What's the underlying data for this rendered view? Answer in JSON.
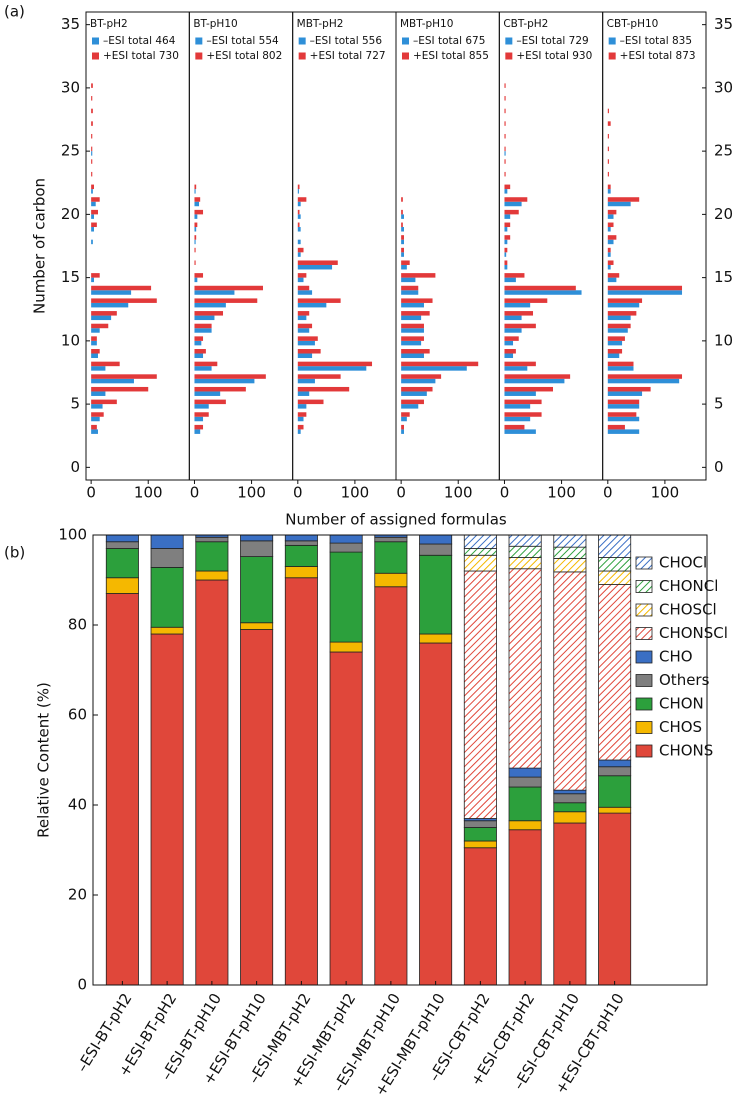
{
  "chart_data": [
    {
      "type": "hbar-panels",
      "label": "(a)",
      "ylabel": "Number of carbon",
      "xlabel": "Number of assigned formulas",
      "ylim": [
        -1,
        36
      ],
      "yticks": [
        0,
        5,
        10,
        15,
        20,
        25,
        30,
        35
      ],
      "xlim": [
        -9,
        172
      ],
      "xticks": [
        0,
        100
      ],
      "categories": [
        2,
        3,
        4,
        5,
        6,
        7,
        8,
        9,
        10,
        11,
        12,
        13,
        14,
        15,
        16,
        17,
        18,
        19,
        20,
        21,
        22,
        23,
        24,
        25,
        26,
        27,
        28,
        29,
        30
      ],
      "panels": [
        {
          "title": "BT-pH2",
          "series": [
            {
              "name": "–ESI total 464",
              "color": "#2e8fd8",
              "values": [
                0,
                12,
                15,
                20,
                25,
                75,
                25,
                12,
                10,
                15,
                35,
                65,
                70,
                5,
                0,
                0,
                3,
                5,
                5,
                8,
                3,
                0,
                0,
                2,
                0,
                0,
                0,
                0,
                0
              ]
            },
            {
              "name": "+ESI total 730",
              "color": "#e2393a",
              "values": [
                0,
                10,
                22,
                45,
                100,
                115,
                50,
                15,
                10,
                30,
                45,
                115,
                105,
                15,
                0,
                0,
                0,
                10,
                12,
                15,
                5,
                2,
                2,
                2,
                2,
                3,
                3,
                2,
                3
              ]
            }
          ]
        },
        {
          "title": "BT-pH10",
          "series": [
            {
              "name": "–ESI total 554",
              "color": "#2e8fd8",
              "values": [
                0,
                10,
                15,
                25,
                45,
                105,
                30,
                15,
                12,
                30,
                35,
                55,
                70,
                5,
                0,
                0,
                2,
                3,
                5,
                8,
                2,
                0,
                0,
                0,
                0,
                0,
                0,
                0,
                0
              ]
            },
            {
              "name": "+ESI total 802",
              "color": "#e2393a",
              "values": [
                0,
                15,
                25,
                55,
                90,
                125,
                40,
                20,
                15,
                30,
                50,
                110,
                120,
                15,
                2,
                2,
                3,
                5,
                15,
                10,
                3,
                0,
                0,
                0,
                0,
                0,
                0,
                0,
                0
              ]
            }
          ]
        },
        {
          "title": "MBT-pH2",
          "series": [
            {
              "name": "–ESI total 556",
              "color": "#2e8fd8",
              "values": [
                0,
                5,
                10,
                15,
                20,
                30,
                120,
                25,
                30,
                20,
                15,
                50,
                25,
                10,
                60,
                5,
                5,
                5,
                5,
                5,
                2,
                0,
                0,
                0,
                0,
                0,
                0,
                0,
                0
              ]
            },
            {
              "name": "+ESI total 727",
              "color": "#e2393a",
              "values": [
                0,
                10,
                15,
                45,
                90,
                75,
                130,
                40,
                35,
                25,
                20,
                75,
                20,
                15,
                70,
                10,
                0,
                3,
                3,
                15,
                3,
                0,
                0,
                0,
                0,
                0,
                0,
                0,
                0
              ]
            }
          ]
        },
        {
          "title": "MBT-pH10",
          "series": [
            {
              "name": "–ESI total 675",
              "color": "#2e8fd8",
              "values": [
                0,
                5,
                10,
                30,
                45,
                60,
                115,
                40,
                35,
                40,
                35,
                40,
                30,
                25,
                10,
                5,
                5,
                5,
                5,
                0,
                0,
                0,
                0,
                0,
                0,
                0,
                0,
                0,
                0
              ]
            },
            {
              "name": "+ESI total 855",
              "color": "#e2393a",
              "values": [
                0,
                5,
                15,
                40,
                55,
                70,
                135,
                50,
                40,
                40,
                50,
                55,
                30,
                60,
                15,
                5,
                5,
                3,
                3,
                3,
                0,
                0,
                0,
                0,
                0,
                0,
                0,
                0,
                0
              ]
            }
          ]
        },
        {
          "title": "CBT-pH2",
          "series": [
            {
              "name": "–ESI total 729",
              "color": "#2e8fd8",
              "values": [
                0,
                55,
                45,
                45,
                55,
                105,
                40,
                15,
                15,
                30,
                30,
                45,
                135,
                20,
                5,
                3,
                5,
                5,
                10,
                30,
                5,
                0,
                0,
                2,
                0,
                0,
                0,
                0,
                0
              ]
            },
            {
              "name": "+ESI total 930",
              "color": "#e2393a",
              "values": [
                0,
                35,
                65,
                65,
                85,
                115,
                55,
                20,
                25,
                55,
                50,
                75,
                125,
                35,
                5,
                5,
                10,
                10,
                25,
                40,
                10,
                2,
                2,
                2,
                2,
                2,
                2,
                2,
                2
              ]
            }
          ]
        },
        {
          "title": "CBT-pH10",
          "series": [
            {
              "name": "–ESI total 835",
              "color": "#2e8fd8",
              "values": [
                0,
                55,
                55,
                55,
                60,
                125,
                45,
                20,
                25,
                35,
                40,
                55,
                130,
                15,
                5,
                5,
                10,
                5,
                10,
                40,
                5,
                0,
                0,
                0,
                0,
                0,
                0,
                0,
                0
              ]
            },
            {
              "name": "+ESI total 873",
              "color": "#e2393a",
              "values": [
                0,
                30,
                50,
                55,
                75,
                130,
                45,
                25,
                30,
                40,
                50,
                60,
                130,
                20,
                10,
                5,
                15,
                10,
                15,
                55,
                5,
                2,
                2,
                2,
                2,
                5,
                2,
                0,
                0
              ]
            }
          ]
        }
      ]
    },
    {
      "type": "stacked-bar",
      "label": "(b)",
      "ylabel": "Relative Content (%)",
      "ylim": [
        0,
        100
      ],
      "yticks": [
        0,
        20,
        40,
        60,
        80,
        100
      ],
      "categories": [
        "–ESI-BT-pH2",
        "+ESI-BT-pH2",
        "–ESI-BT-pH10",
        "+ESI-BT-pH10",
        "–ESI-MBT-pH2",
        "+ESI-MBT-pH2",
        "–ESI-MBT-pH10",
        "+ESI-MBT-pH10",
        "–ESI-CBT-pH2",
        "+ESI-CBT-pH2",
        "–ESI-CBT-pH10",
        "+ESI-CBT-pH10"
      ],
      "series": [
        {
          "name": "CHONS",
          "color": "#e0473a",
          "hatch": false,
          "values": [
            87,
            78,
            90,
            79,
            90.5,
            74,
            88.5,
            76,
            30.5,
            34.5,
            36,
            38.2
          ]
        },
        {
          "name": "CHOS",
          "color": "#f5b800",
          "hatch": false,
          "values": [
            3.5,
            1.5,
            2,
            1.5,
            2.5,
            2.2,
            3,
            2,
            1.5,
            2,
            2.5,
            1.3
          ]
        },
        {
          "name": "CHON",
          "color": "#2ca03c",
          "hatch": false,
          "values": [
            6.5,
            13.3,
            6.5,
            14.7,
            4.7,
            20,
            7,
            17.5,
            3,
            7.5,
            2,
            7
          ]
        },
        {
          "name": "Others",
          "color": "#7f7f7f",
          "hatch": false,
          "values": [
            1.5,
            4.2,
            1,
            3.5,
            1,
            2,
            1,
            2.5,
            1.5,
            2.2,
            2,
            2
          ]
        },
        {
          "name": "CHO",
          "color": "#3a6fc4",
          "hatch": false,
          "values": [
            1.5,
            3,
            0.5,
            1.3,
            1.3,
            1.8,
            0.5,
            2,
            0.5,
            2,
            0.8,
            1.5
          ]
        },
        {
          "name": "CHONSCl",
          "color": "#e0473a",
          "hatch": true,
          "values": [
            0,
            0,
            0,
            0,
            0,
            0,
            0,
            0,
            55,
            44.3,
            48.5,
            39
          ]
        },
        {
          "name": "CHOSCl",
          "color": "#f5b800",
          "hatch": true,
          "values": [
            0,
            0,
            0,
            0,
            0,
            0,
            0,
            0,
            3.5,
            2.5,
            3,
            3
          ]
        },
        {
          "name": "CHONCl",
          "color": "#2ca03c",
          "hatch": true,
          "values": [
            0,
            0,
            0,
            0,
            0,
            0,
            0,
            0,
            1.5,
            2.5,
            2.5,
            3
          ]
        },
        {
          "name": "CHOCl",
          "color": "#3a6fc4",
          "hatch": true,
          "values": [
            0,
            0,
            0,
            0,
            0,
            0,
            0,
            0,
            3,
            2.5,
            2.7,
            5
          ]
        }
      ]
    }
  ]
}
